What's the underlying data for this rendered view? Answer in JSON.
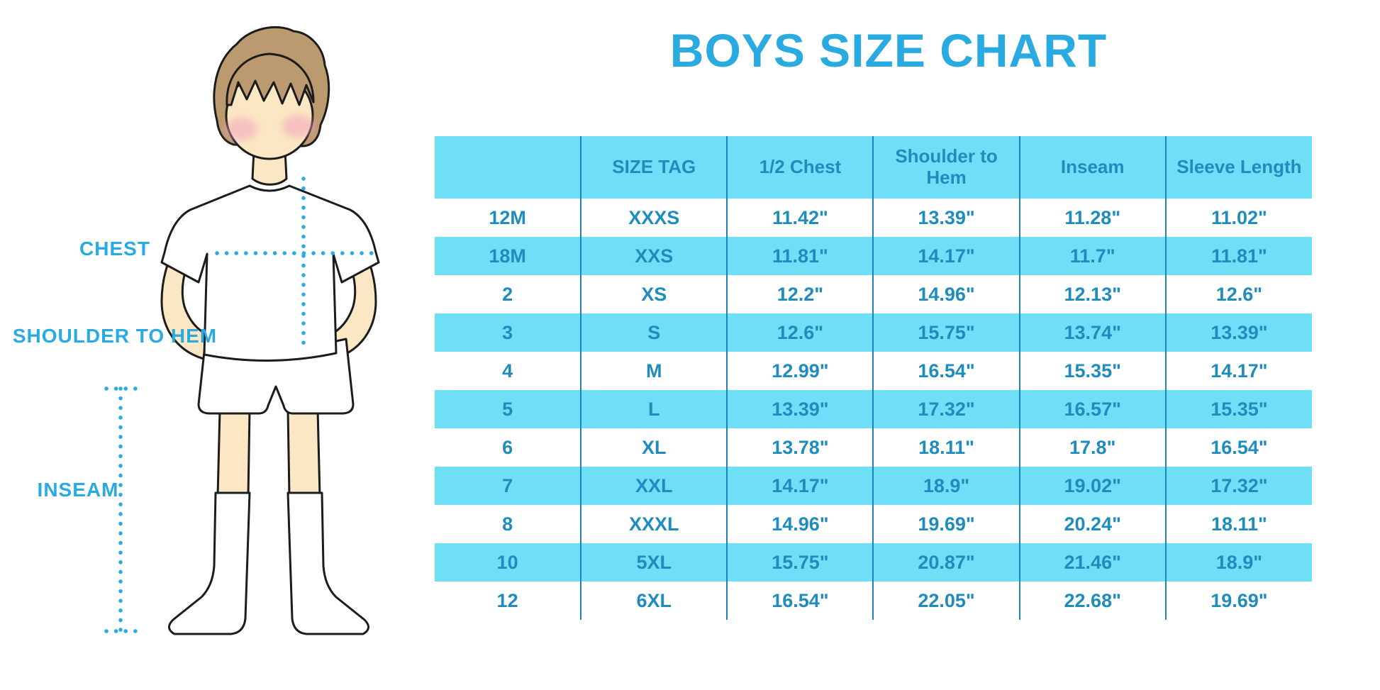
{
  "title": "BOYS SIZE CHART",
  "figure": {
    "labels": {
      "chest": "CHEST",
      "shoulder_to_hem": "SHOULDER TO HEM",
      "inseam": "INSEAM"
    }
  },
  "table": {
    "headers": [
      "",
      "SIZE TAG",
      "1/2 Chest",
      "Shoulder to Hem",
      "Inseam",
      "Sleeve Length"
    ],
    "rows": [
      [
        "12M",
        "XXXS",
        "11.42\"",
        "13.39\"",
        "11.28\"",
        "11.02\""
      ],
      [
        "18M",
        "XXS",
        "11.81\"",
        "14.17\"",
        "11.7\"",
        "11.81\""
      ],
      [
        "2",
        "XS",
        "12.2\"",
        "14.96\"",
        "12.13\"",
        "12.6\""
      ],
      [
        "3",
        "S",
        "12.6\"",
        "15.75\"",
        "13.74\"",
        "13.39\""
      ],
      [
        "4",
        "M",
        "12.99\"",
        "16.54\"",
        "15.35\"",
        "14.17\""
      ],
      [
        "5",
        "L",
        "13.39\"",
        "17.32\"",
        "16.57\"",
        "15.35\""
      ],
      [
        "6",
        "XL",
        "13.78\"",
        "18.11\"",
        "17.8\"",
        "16.54\""
      ],
      [
        "7",
        "XXL",
        "14.17\"",
        "18.9\"",
        "19.02\"",
        "17.32\""
      ],
      [
        "8",
        "XXXL",
        "14.96\"",
        "19.69\"",
        "20.24\"",
        "18.11\""
      ],
      [
        "10",
        "5XL",
        "15.75\"",
        "20.87\"",
        "21.46\"",
        "18.9\""
      ],
      [
        "12",
        "6XL",
        "16.54\"",
        "22.05\"",
        "22.68\"",
        "19.69\""
      ]
    ]
  },
  "colors": {
    "accent": "#29ABE2",
    "band": "#6FDFF7",
    "table_text": "#1E8CBC",
    "divider": "#1C84B6",
    "skin": "#FBE7C3",
    "hair": "#BC9A6F",
    "blush": "#F2A3BC",
    "outline": "#1C1C1C"
  }
}
